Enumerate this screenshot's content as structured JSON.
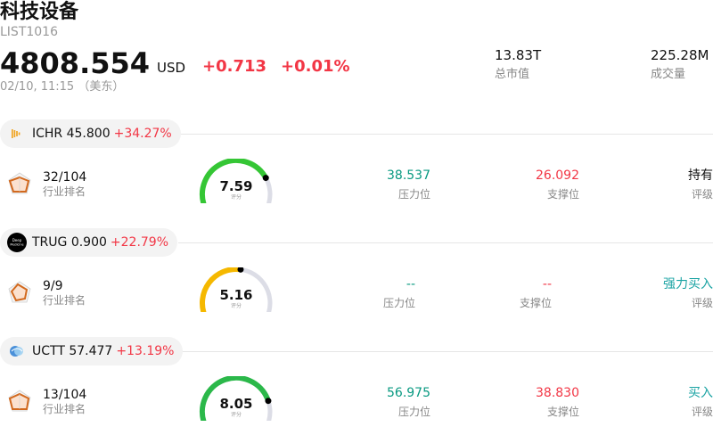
{
  "header": {
    "title": "科技设备",
    "code": "LIST1016",
    "price": "4808.554",
    "currency": "USD",
    "change": "+0.713",
    "change_pct": "+0.01%",
    "time": "02/10, 11:15 （美东）",
    "market_cap": {
      "value": "13.83T",
      "label": "总市值"
    },
    "volume": {
      "value": "225.28M",
      "label": "成交量"
    }
  },
  "stocks": [
    {
      "ticker": "ICHR 45.800",
      "change_pct": "+34.27%",
      "logo_icon": "ichr-logo-icon",
      "rank": "32/104",
      "rank_label": "行业排名",
      "score": "7.59",
      "score_fraction": 0.759,
      "score_label": "评分",
      "score_color": "#35c635",
      "resistance": "38.537",
      "resistance_label": "压力位",
      "support": "26.092",
      "support_label": "支撑位",
      "rating": "持有",
      "rating_label": "评级",
      "rating_color": "#111111"
    },
    {
      "ticker": "TRUG 0.900",
      "change_pct": "+22.79%",
      "logo_icon": "trug-logo-icon",
      "logo_text": "Deep Medicine",
      "rank": "9/9",
      "rank_label": "行业排名",
      "score": "5.16",
      "score_fraction": 0.516,
      "score_label": "评分",
      "score_color": "#f5b800",
      "resistance": "--",
      "resistance_label": "压力位",
      "support": "--",
      "support_label": "支撑位",
      "rating": "强力买入",
      "rating_label": "评级",
      "rating_color": "#1aa3a3"
    },
    {
      "ticker": "UCTT 57.477",
      "change_pct": "+13.19%",
      "logo_icon": "uctt-logo-icon",
      "rank": "13/104",
      "rank_label": "行业排名",
      "score": "8.05",
      "score_fraction": 0.805,
      "score_label": "评分",
      "score_color": "#2bb84a",
      "resistance": "56.975",
      "resistance_label": "压力位",
      "support": "38.830",
      "support_label": "支撑位",
      "rating": "买入",
      "rating_label": "评级",
      "rating_color": "#1aa3a3"
    }
  ]
}
